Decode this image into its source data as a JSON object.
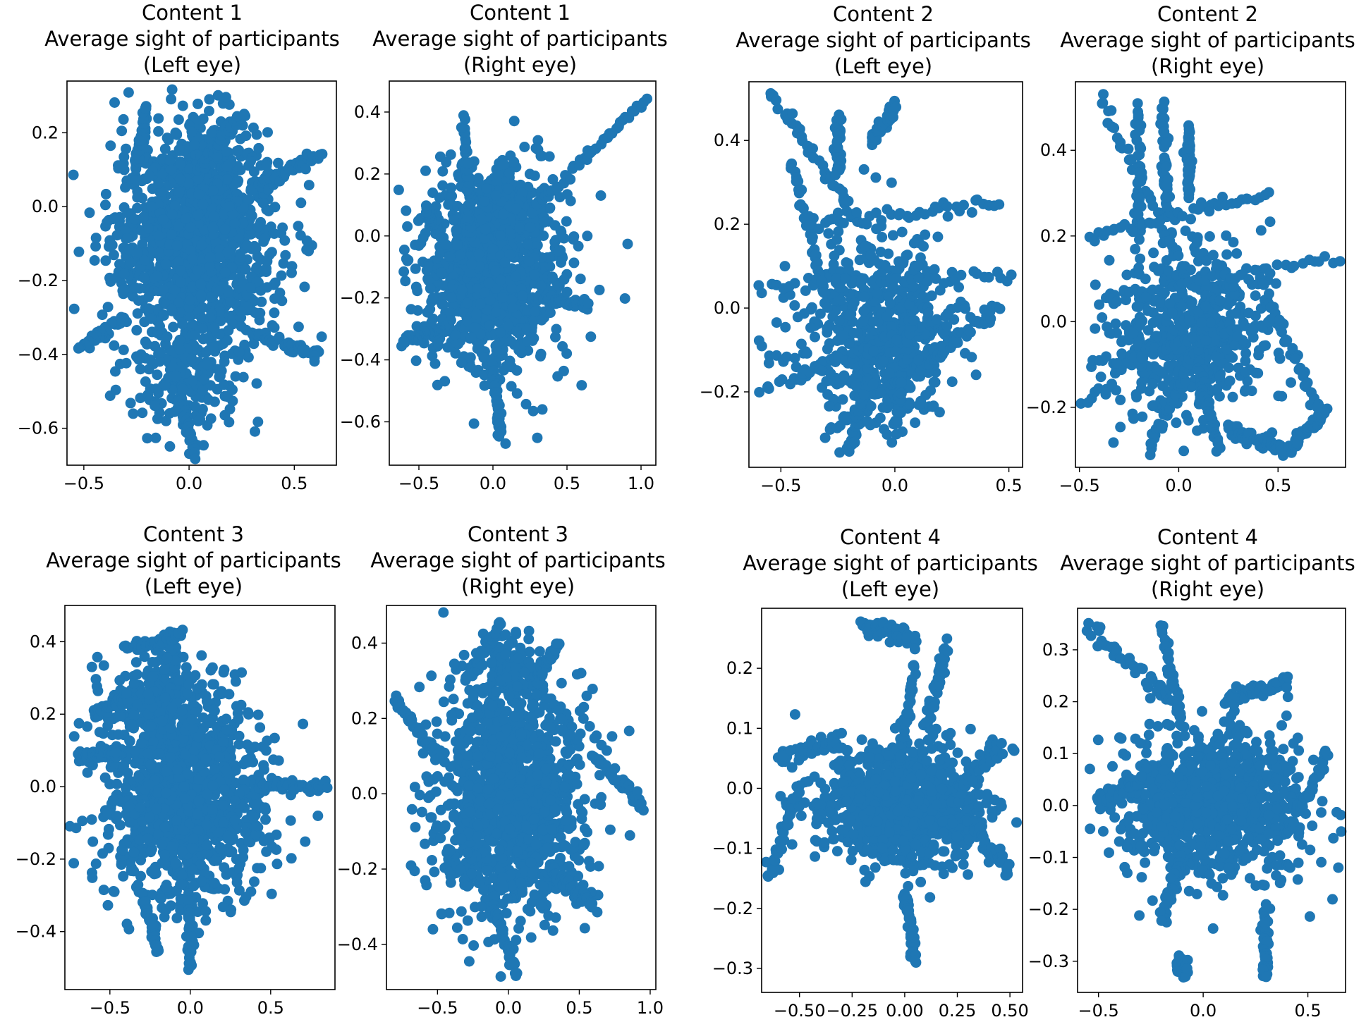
{
  "figure": {
    "accent_color": "#1f77b4"
  },
  "chart_data": [
    {
      "type": "scatter",
      "panel": "c1-left",
      "title": [
        "Content 1",
        "Average sight of participants",
        "(Left eye)"
      ],
      "xlim": [
        -0.58,
        0.7
      ],
      "ylim": [
        -0.7,
        0.34
      ],
      "xticks": [
        -0.5,
        0.0,
        0.5
      ],
      "xtick_labels": [
        "−0.5",
        "0.0",
        "0.5"
      ],
      "yticks": [
        0.2,
        0.0,
        -0.2,
        -0.4,
        -0.6
      ],
      "ytick_labels": [
        "0.2",
        "0.0",
        "−0.2",
        "−0.4",
        "−0.6"
      ],
      "clusters": [
        {
          "cx": 0.03,
          "cy": -0.1,
          "sx": 0.2,
          "sy": 0.14,
          "n": 1100
        },
        {
          "cx": 0.1,
          "cy": 0.12,
          "sx": 0.12,
          "sy": 0.08,
          "n": 160
        },
        {
          "cx": 0.0,
          "cy": -0.45,
          "sx": 0.14,
          "sy": 0.08,
          "n": 180
        }
      ],
      "paths": [
        [
          [
            0.3,
            0.05
          ],
          [
            0.62,
            0.14
          ]
        ],
        [
          [
            0.3,
            -0.35
          ],
          [
            0.62,
            -0.4
          ]
        ],
        [
          [
            -0.25,
            0.1
          ],
          [
            -0.2,
            0.27
          ]
        ],
        [
          [
            -0.05,
            -0.5
          ],
          [
            0.03,
            -0.68
          ]
        ],
        [
          [
            -0.3,
            -0.3
          ],
          [
            -0.52,
            -0.38
          ]
        ],
        [
          [
            0.05,
            0.1
          ],
          [
            0.25,
            0.25
          ]
        ]
      ],
      "n_points": 1440
    },
    {
      "type": "scatter",
      "panel": "c1-right",
      "title": [
        "Content 1",
        "Average sight of participants",
        "(Right eye)"
      ],
      "xlim": [
        -0.7,
        1.1
      ],
      "ylim": [
        -0.74,
        0.5
      ],
      "xticks": [
        -0.5,
        0.0,
        0.5,
        1.0
      ],
      "xtick_labels": [
        "−0.5",
        "0.0",
        "0.5",
        "1.0"
      ],
      "yticks": [
        0.4,
        0.2,
        0.0,
        -0.2,
        -0.4,
        -0.6
      ],
      "ytick_labels": [
        "0.4",
        "0.2",
        "0.0",
        "−0.2",
        "−0.4",
        "−0.6"
      ],
      "clusters": [
        {
          "cx": 0.0,
          "cy": -0.12,
          "sx": 0.24,
          "sy": 0.15,
          "n": 1050
        },
        {
          "cx": 0.0,
          "cy": 0.1,
          "sx": 0.15,
          "sy": 0.08,
          "n": 150
        }
      ],
      "paths": [
        [
          [
            0.3,
            0.1
          ],
          [
            1.03,
            0.44
          ]
        ],
        [
          [
            -0.15,
            0.0
          ],
          [
            -0.2,
            0.38
          ]
        ],
        [
          [
            -0.3,
            -0.3
          ],
          [
            -0.62,
            -0.34
          ]
        ],
        [
          [
            0.0,
            -0.4
          ],
          [
            0.05,
            -0.65
          ]
        ],
        [
          [
            0.3,
            -0.2
          ],
          [
            0.65,
            -0.22
          ]
        ],
        [
          [
            -0.35,
            0.0
          ],
          [
            -0.45,
            0.09
          ]
        ]
      ],
      "n_points": 1200
    },
    {
      "type": "scatter",
      "panel": "c2-left",
      "title": [
        "Content 2",
        "Average sight of participants",
        "(Left eye)"
      ],
      "xlim": [
        -0.64,
        0.56
      ],
      "ylim": [
        -0.38,
        0.54
      ],
      "xticks": [
        -0.5,
        0.0,
        0.5
      ],
      "xtick_labels": [
        "−0.5",
        "0.0",
        "0.5"
      ],
      "yticks": [
        0.4,
        0.2,
        0.0,
        -0.2
      ],
      "ytick_labels": [
        "0.4",
        "0.2",
        "0.0",
        "−0.2"
      ],
      "clusters": [
        {
          "cx": -0.05,
          "cy": -0.05,
          "sx": 0.16,
          "sy": 0.11,
          "n": 500
        }
      ],
      "paths": [
        [
          [
            -0.55,
            0.52
          ],
          [
            -0.15,
            0.2
          ]
        ],
        [
          [
            -0.25,
            0.45
          ],
          [
            -0.25,
            0.32
          ]
        ],
        [
          [
            -0.1,
            0.4
          ],
          [
            0.0,
            0.48
          ]
        ],
        [
          [
            -0.6,
            -0.2
          ],
          [
            0.3,
            0.0
          ]
        ],
        [
          [
            -0.6,
            0.05
          ],
          [
            0.52,
            0.08
          ]
        ],
        [
          [
            -0.4,
            0.2
          ],
          [
            0.45,
            0.25
          ]
        ],
        [
          [
            -0.3,
            -0.3
          ],
          [
            0.2,
            -0.1
          ]
        ],
        [
          [
            -0.2,
            -0.35
          ],
          [
            -0.1,
            -0.1
          ]
        ],
        [
          [
            0.1,
            -0.15
          ],
          [
            0.45,
            0.0
          ]
        ],
        [
          [
            -0.6,
            -0.1
          ],
          [
            0.2,
            -0.25
          ]
        ],
        [
          [
            0.0,
            -0.3
          ],
          [
            0.1,
            0.1
          ]
        ],
        [
          [
            -0.45,
            0.35
          ],
          [
            -0.3,
            0.0
          ]
        ]
      ],
      "n_points": 1220
    },
    {
      "type": "scatter",
      "panel": "c2-right",
      "title": [
        "Content 2",
        "Average sight of participants",
        "(Right eye)"
      ],
      "xlim": [
        -0.52,
        0.84
      ],
      "ylim": [
        -0.34,
        0.56
      ],
      "xticks": [
        -0.5,
        0.0,
        0.5
      ],
      "xtick_labels": [
        "−0.5",
        "0.0",
        "0.5"
      ],
      "yticks": [
        0.4,
        0.2,
        0.0,
        -0.2
      ],
      "ytick_labels": [
        "0.4",
        "0.2",
        "0.0",
        "−0.2"
      ],
      "clusters": [
        {
          "cx": 0.05,
          "cy": -0.02,
          "sx": 0.2,
          "sy": 0.11,
          "n": 520
        }
      ],
      "paths": [
        [
          [
            -0.4,
            0.52
          ],
          [
            0.05,
            0.1
          ]
        ],
        [
          [
            -0.2,
            0.5
          ],
          [
            -0.2,
            0.2
          ]
        ],
        [
          [
            -0.08,
            0.5
          ],
          [
            -0.06,
            0.25
          ]
        ],
        [
          [
            0.05,
            0.45
          ],
          [
            0.05,
            0.3
          ]
        ],
        [
          [
            -0.45,
            0.2
          ],
          [
            0.45,
            0.3
          ]
        ],
        [
          [
            -0.5,
            -0.2
          ],
          [
            0.3,
            0.1
          ]
        ],
        [
          [
            -0.4,
            0.05
          ],
          [
            0.8,
            0.15
          ]
        ],
        [
          [
            -0.15,
            -0.3
          ],
          [
            0.1,
            -0.05
          ]
        ],
        [
          [
            0.25,
            -0.25
          ],
          [
            0.55,
            -0.3
          ]
        ],
        [
          [
            0.55,
            -0.3
          ],
          [
            0.75,
            -0.2
          ]
        ],
        [
          [
            0.4,
            0.1
          ],
          [
            0.7,
            -0.2
          ]
        ],
        [
          [
            0.1,
            -0.1
          ],
          [
            0.2,
            -0.3
          ]
        ],
        [
          [
            -0.45,
            -0.1
          ],
          [
            0.5,
            0.0
          ]
        ]
      ],
      "n_points": 1350
    },
    {
      "type": "scatter",
      "panel": "c3-left",
      "title": [
        "Content 3",
        "Average sight of participants",
        "(Left eye)"
      ],
      "xlim": [
        -0.78,
        0.9
      ],
      "ylim": [
        -0.56,
        0.5
      ],
      "xticks": [
        -0.5,
        0.0,
        0.5
      ],
      "xtick_labels": [
        "−0.5",
        "0.0",
        "0.5"
      ],
      "yticks": [
        0.4,
        0.2,
        0.0,
        -0.2,
        -0.4
      ],
      "ytick_labels": [
        "0.4",
        "0.2",
        "0.0",
        "−0.2",
        "−0.4"
      ],
      "clusters": [
        {
          "cx": -0.05,
          "cy": -0.02,
          "sx": 0.25,
          "sy": 0.15,
          "n": 1200
        },
        {
          "cx": -0.2,
          "cy": 0.25,
          "sx": 0.12,
          "sy": 0.07,
          "n": 150
        }
      ],
      "paths": [
        [
          [
            -0.4,
            0.38
          ],
          [
            -0.05,
            0.42
          ]
        ],
        [
          [
            0.0,
            -0.3
          ],
          [
            0.0,
            -0.5
          ]
        ],
        [
          [
            0.4,
            0.0
          ],
          [
            0.85,
            0.0
          ]
        ],
        [
          [
            -0.7,
            0.08
          ],
          [
            -0.45,
            0.1
          ]
        ],
        [
          [
            -0.3,
            -0.3
          ],
          [
            -0.2,
            -0.45
          ]
        ],
        [
          [
            -0.6,
            0.2
          ],
          [
            -0.4,
            0.25
          ]
        ]
      ],
      "n_points": 1500
    },
    {
      "type": "scatter",
      "panel": "c3-right",
      "title": [
        "Content 3",
        "Average sight of participants",
        "(Right eye)"
      ],
      "xlim": [
        -0.86,
        1.04
      ],
      "ylim": [
        -0.52,
        0.5
      ],
      "xticks": [
        -0.5,
        0.0,
        0.5,
        1.0
      ],
      "xtick_labels": [
        "−0.5",
        "0.0",
        "0.5",
        "1.0"
      ],
      "yticks": [
        0.4,
        0.2,
        0.0,
        -0.2,
        -0.4
      ],
      "ytick_labels": [
        "0.4",
        "0.2",
        "0.0",
        "−0.2",
        "−0.4"
      ],
      "clusters": [
        {
          "cx": 0.0,
          "cy": -0.02,
          "sx": 0.27,
          "sy": 0.16,
          "n": 1200
        },
        {
          "cx": 0.0,
          "cy": 0.3,
          "sx": 0.12,
          "sy": 0.07,
          "n": 120
        }
      ],
      "paths": [
        [
          [
            -0.3,
            0.3
          ],
          [
            -0.05,
            0.45
          ]
        ],
        [
          [
            0.2,
            0.3
          ],
          [
            0.35,
            0.4
          ]
        ],
        [
          [
            -0.8,
            0.25
          ],
          [
            -0.5,
            0.1
          ]
        ],
        [
          [
            0.6,
            0.1
          ],
          [
            0.95,
            -0.03
          ]
        ],
        [
          [
            -0.1,
            -0.3
          ],
          [
            0.05,
            -0.48
          ]
        ],
        [
          [
            0.3,
            -0.2
          ],
          [
            0.6,
            -0.3
          ]
        ]
      ],
      "n_points": 1440
    },
    {
      "type": "scatter",
      "panel": "c4-left",
      "title": [
        "Content 4",
        "Average sight of participants",
        "(Left eye)"
      ],
      "xlim": [
        -0.68,
        0.56
      ],
      "ylim": [
        -0.34,
        0.3
      ],
      "xticks": [
        -0.5,
        -0.25,
        0.0,
        0.25,
        0.5
      ],
      "xtick_labels": [
        "−0.50",
        "−0.25",
        "0.00",
        "0.25",
        "0.50"
      ],
      "yticks": [
        0.2,
        0.1,
        0.0,
        -0.1,
        -0.2,
        -0.3
      ],
      "ytick_labels": [
        "0.2",
        "0.1",
        "0.0",
        "−0.1",
        "−0.2",
        "−0.3"
      ],
      "clusters": [
        {
          "cx": 0.0,
          "cy": -0.03,
          "sx": 0.2,
          "sy": 0.05,
          "n": 900
        }
      ],
      "paths": [
        [
          [
            -0.2,
            0.27
          ],
          [
            0.05,
            0.25
          ]
        ],
        [
          [
            0.1,
            0.1
          ],
          [
            0.2,
            0.24
          ]
        ],
        [
          [
            -0.05,
            0.0
          ],
          [
            0.05,
            0.2
          ]
        ],
        [
          [
            0.0,
            -0.17
          ],
          [
            0.05,
            -0.29
          ]
        ],
        [
          [
            -0.65,
            -0.15
          ],
          [
            -0.5,
            0.0
          ]
        ],
        [
          [
            -0.6,
            0.05
          ],
          [
            -0.3,
            0.08
          ]
        ],
        [
          [
            0.25,
            0.0
          ],
          [
            0.45,
            0.07
          ]
        ],
        [
          [
            0.3,
            -0.05
          ],
          [
            0.5,
            -0.14
          ]
        ]
      ],
      "n_points": 1080
    },
    {
      "type": "scatter",
      "panel": "c4-right",
      "title": [
        "Content 4",
        "Average sight of participants",
        "(Right eye)"
      ],
      "xlim": [
        -0.6,
        0.68
      ],
      "ylim": [
        -0.36,
        0.38
      ],
      "xticks": [
        -0.5,
        0.0,
        0.5
      ],
      "xtick_labels": [
        "−0.5",
        "0.0",
        "0.5"
      ],
      "yticks": [
        0.3,
        0.2,
        0.1,
        0.0,
        -0.1,
        -0.2,
        -0.3
      ],
      "ytick_labels": [
        "0.3",
        "0.2",
        "0.1",
        "0.0",
        "−0.1",
        "−0.2",
        "−0.3"
      ],
      "clusters": [
        {
          "cx": 0.05,
          "cy": 0.0,
          "sx": 0.22,
          "sy": 0.07,
          "n": 900
        }
      ],
      "paths": [
        [
          [
            -0.55,
            0.34
          ],
          [
            -0.15,
            0.2
          ]
        ],
        [
          [
            -0.2,
            0.35
          ],
          [
            -0.1,
            0.15
          ]
        ],
        [
          [
            0.1,
            0.2
          ],
          [
            0.4,
            0.24
          ]
        ],
        [
          [
            0.3,
            -0.2
          ],
          [
            0.3,
            -0.33
          ]
        ],
        [
          [
            0.4,
            -0.05
          ],
          [
            0.6,
            0.1
          ]
        ],
        [
          [
            -0.1,
            -0.1
          ],
          [
            -0.2,
            -0.22
          ]
        ],
        [
          [
            -0.5,
            0.0
          ],
          [
            -0.3,
            0.05
          ]
        ],
        [
          [
            -0.12,
            -0.3
          ],
          [
            -0.08,
            -0.32
          ]
        ]
      ],
      "n_points": 1180
    }
  ]
}
